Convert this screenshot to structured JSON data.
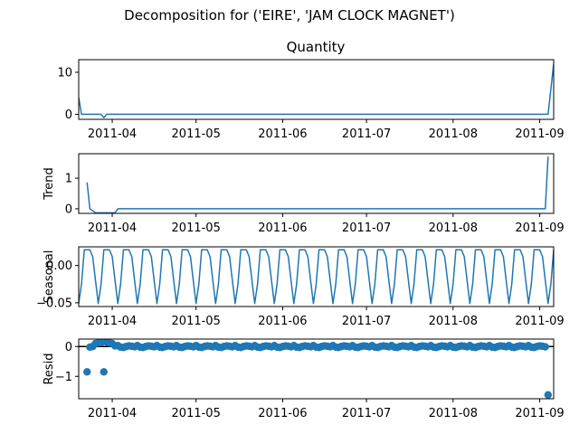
{
  "figure": {
    "suptitle": "Decomposition for ('EIRE', 'JAM CLOCK MAGNET')"
  },
  "chart_data": [
    {
      "type": "line",
      "title": "Quantity",
      "ylabel": "",
      "line_color": "#1f77b4",
      "xlim": [
        "2011-03-20",
        "2011-09-06"
      ],
      "ylim": [
        -1.2,
        13
      ],
      "yticks": [
        0,
        10
      ],
      "xticks": [
        "2011-04-01",
        "2011-05-01",
        "2011-06-01",
        "2011-07-01",
        "2011-08-01",
        "2011-09-01"
      ],
      "xtick_labels": [
        "2011-04",
        "2011-05",
        "2011-06",
        "2011-07",
        "2011-08",
        "2011-09"
      ],
      "points": [
        [
          "2011-03-20",
          4.0
        ],
        [
          "2011-03-21",
          0
        ],
        [
          "2011-03-28",
          0
        ],
        [
          "2011-03-29",
          -0.8
        ],
        [
          "2011-03-30",
          0
        ],
        [
          "2011-09-04",
          0
        ],
        [
          "2011-09-06",
          12
        ]
      ]
    },
    {
      "type": "line",
      "title": "",
      "ylabel": "Trend",
      "line_color": "#1f77b4",
      "xlim": [
        "2011-03-20",
        "2011-09-06"
      ],
      "ylim": [
        -0.15,
        1.8
      ],
      "yticks": [
        0,
        1
      ],
      "xticks": [
        "2011-04-01",
        "2011-05-01",
        "2011-06-01",
        "2011-07-01",
        "2011-08-01",
        "2011-09-01"
      ],
      "xtick_labels": [
        "2011-04",
        "2011-05",
        "2011-06",
        "2011-07",
        "2011-08",
        "2011-09"
      ],
      "points": [
        [
          "2011-03-23",
          0.86
        ],
        [
          "2011-03-24",
          0
        ],
        [
          "2011-03-26",
          -0.13
        ],
        [
          "2011-04-02",
          -0.13
        ],
        [
          "2011-04-03",
          0
        ],
        [
          "2011-09-03",
          0
        ],
        [
          "2011-09-04",
          1.71
        ]
      ]
    },
    {
      "type": "line",
      "title": "",
      "ylabel": "Seasonal",
      "line_color": "#1f77b4",
      "xlim": [
        "2011-03-20",
        "2011-09-06"
      ],
      "ylim": [
        -0.055,
        0.025
      ],
      "yticks": [
        0.0,
        -0.05
      ],
      "ytick_labels": [
        "0.00",
        "−0.05"
      ],
      "xticks": [
        "2011-04-01",
        "2011-05-01",
        "2011-06-01",
        "2011-07-01",
        "2011-08-01",
        "2011-09-01"
      ],
      "xtick_labels": [
        "2011-04",
        "2011-05",
        "2011-06",
        "2011-07",
        "2011-08",
        "2011-09"
      ],
      "period_days": 7,
      "pattern_start": "2011-03-20",
      "pattern": [
        -0.051,
        -0.025,
        0.021,
        0.021,
        0.021,
        0.012,
        -0.02
      ]
    },
    {
      "type": "scatter",
      "title": "",
      "ylabel": "Resid",
      "marker_color": "#1f77b4",
      "zero_line": true,
      "xlim": [
        "2011-03-20",
        "2011-09-06"
      ],
      "ylim": [
        -1.75,
        0.25
      ],
      "yticks": [
        0,
        -1
      ],
      "ytick_labels": [
        "0",
        "−1"
      ],
      "xticks": [
        "2011-04-01",
        "2011-05-01",
        "2011-06-01",
        "2011-07-01",
        "2011-08-01",
        "2011-09-01"
      ],
      "xtick_labels": [
        "2011-04",
        "2011-05",
        "2011-06",
        "2011-07",
        "2011-08",
        "2011-09"
      ],
      "points": [
        [
          "2011-03-23",
          -0.85
        ],
        [
          "2011-03-24",
          -0.02
        ],
        [
          "2011-03-25",
          0.0
        ],
        [
          "2011-03-26",
          0.1
        ],
        [
          "2011-03-27",
          0.12
        ],
        [
          "2011-03-28",
          0.13
        ],
        [
          "2011-03-29",
          -0.85
        ],
        [
          "2011-03-30",
          0.15
        ],
        [
          "2011-03-31",
          0.12
        ],
        [
          "2011-04-01",
          0.1
        ],
        [
          "2011-04-02",
          0.02
        ]
      ],
      "fill_start": "2011-04-03",
      "fill_end": "2011-09-03",
      "fill_pattern": [
        0.03,
        -0.02,
        -0.03,
        0.0,
        0.02,
        0.01,
        -0.01
      ],
      "outlier": [
        "2011-09-04",
        -1.62
      ]
    }
  ]
}
